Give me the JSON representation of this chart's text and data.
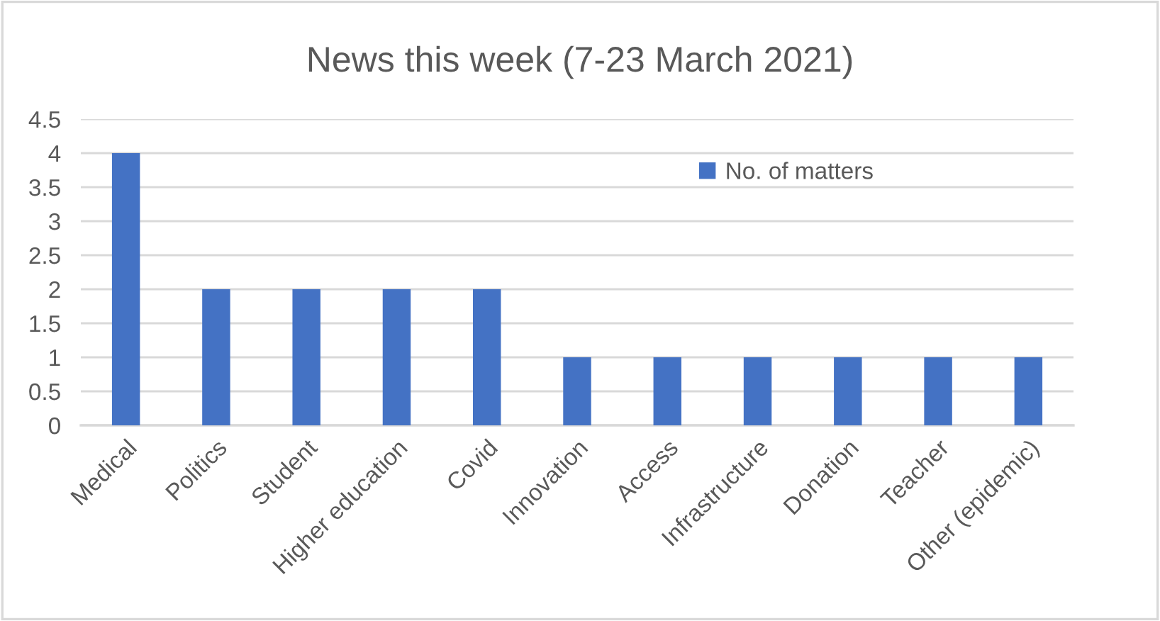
{
  "chart_data": {
    "type": "bar",
    "title": "News this week (7-23 March 2021)",
    "categories": [
      "Medical",
      "Politics",
      "Student",
      "Higher education",
      "Covid",
      "Innovation",
      "Access",
      "Infrastructure",
      "Donation",
      "Teacher",
      "Other (epidemic)"
    ],
    "series": [
      {
        "name": "No. of matters",
        "color": "#4472c4",
        "values": [
          4,
          2,
          2,
          2,
          2,
          1,
          1,
          1,
          1,
          1,
          1
        ]
      }
    ],
    "ylim": [
      0,
      4.5
    ],
    "yticks": [
      0,
      0.5,
      1,
      1.5,
      2,
      2.5,
      3,
      3.5,
      4,
      4.5
    ],
    "grid": "y",
    "legend": "top right"
  }
}
